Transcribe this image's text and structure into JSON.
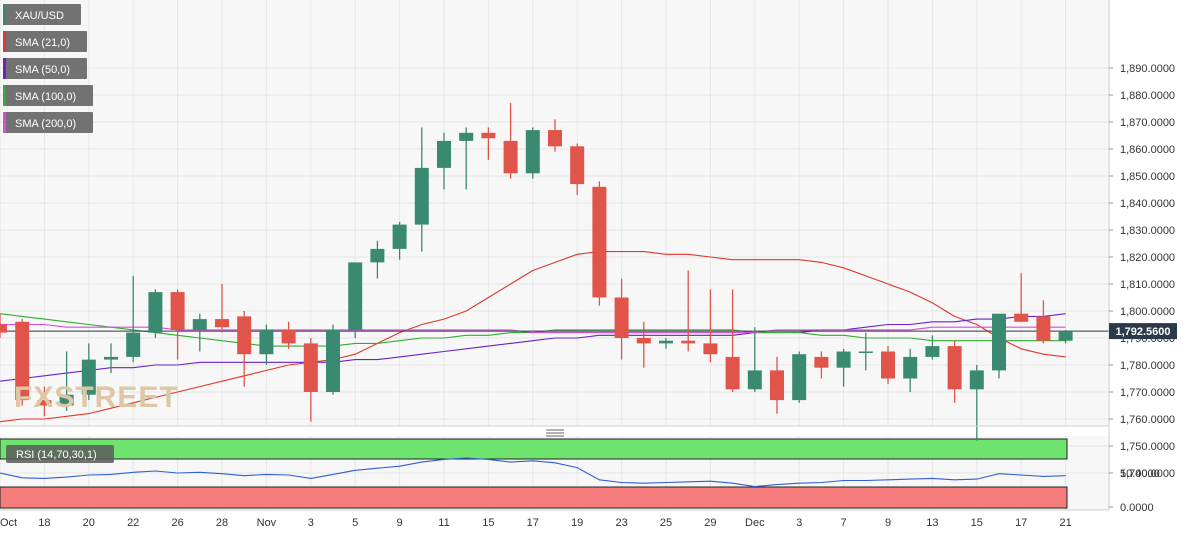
{
  "colors": {
    "background": "#f7f7f7",
    "grid": "#e6e6e6",
    "up": "#3a8a72",
    "down": "#e0544a",
    "sma21": "#e0362c",
    "sma50": "#6a22c8",
    "sma100": "#2fae2f",
    "sma200": "#d94bd9",
    "price_line": "#2b3a4a",
    "rsi_line": "#2f5fd6",
    "rsi_overbought": "#6ee36e",
    "rsi_oversold": "#f77c7c",
    "axis_text": "#333333"
  },
  "legend": [
    {
      "label": "XAU/USD",
      "color": "#3a8a72"
    },
    {
      "label": "SMA (21,0)",
      "color": "#e0362c"
    },
    {
      "label": "SMA (50,0)",
      "color": "#6a22c8"
    },
    {
      "label": "SMA (100,0)",
      "color": "#2fae2f"
    },
    {
      "label": "SMA (200,0)",
      "color": "#d94bd9"
    }
  ],
  "watermark": "FXSTREET",
  "last_price_label": "1,792.5600",
  "rsi_label": "RSI (14,70,30,1)",
  "chart_data": {
    "type": "candlestick",
    "symbol": "XAU/USD",
    "ylim": [
      1733,
      1893
    ],
    "y_ticks": [
      1740,
      1750,
      1760,
      1770,
      1780,
      1790,
      1800,
      1810,
      1820,
      1830,
      1840,
      1850,
      1860,
      1870,
      1880,
      1890
    ],
    "y_tick_labels": [
      "1,740.0000",
      "1,750.0000",
      "1,760.0000",
      "1,770.0000",
      "1,780.0000",
      "1,790.0000",
      "1,800.0000",
      "1,810.0000",
      "1,820.0000",
      "1,830.0000",
      "1,840.0000",
      "1,850.0000",
      "1,860.0000",
      "1,870.0000",
      "1,880.0000",
      "1,890.0000"
    ],
    "x_tick_labels": [
      "Oct",
      "18",
      "20",
      "22",
      "26",
      "28",
      "Nov",
      "3",
      "5",
      "9",
      "11",
      "15",
      "17",
      "19",
      "23",
      "25",
      "29",
      "Dec",
      "3",
      "7",
      "9",
      "13",
      "15",
      "17",
      "21"
    ],
    "x_tick_index": [
      0,
      2,
      4,
      6,
      8,
      10,
      12,
      14,
      16,
      18,
      20,
      22,
      24,
      26,
      28,
      30,
      32,
      34,
      36,
      38,
      40,
      42,
      44,
      46,
      48
    ],
    "last_price": 1792.56,
    "candles": [
      {
        "o": 1795,
        "h": 1799,
        "l": 1790,
        "c": 1792
      },
      {
        "o": 1796,
        "h": 1797,
        "l": 1765,
        "c": 1767
      },
      {
        "o": 1767,
        "h": 1772,
        "l": 1761,
        "c": 1765
      },
      {
        "o": 1765,
        "h": 1785,
        "l": 1763,
        "c": 1769
      },
      {
        "o": 1769,
        "h": 1788,
        "l": 1767,
        "c": 1782
      },
      {
        "o": 1782,
        "h": 1788,
        "l": 1777,
        "c": 1783
      },
      {
        "o": 1783,
        "h": 1813,
        "l": 1781,
        "c": 1792
      },
      {
        "o": 1792,
        "h": 1808,
        "l": 1790,
        "c": 1807
      },
      {
        "o": 1807,
        "h": 1808,
        "l": 1782,
        "c": 1793
      },
      {
        "o": 1793,
        "h": 1799,
        "l": 1785,
        "c": 1797
      },
      {
        "o": 1797,
        "h": 1810,
        "l": 1792,
        "c": 1794
      },
      {
        "o": 1798,
        "h": 1800,
        "l": 1772,
        "c": 1784
      },
      {
        "o": 1784,
        "h": 1795,
        "l": 1780,
        "c": 1793
      },
      {
        "o": 1793,
        "h": 1796,
        "l": 1786,
        "c": 1788
      },
      {
        "o": 1788,
        "h": 1790,
        "l": 1759,
        "c": 1770
      },
      {
        "o": 1770,
        "h": 1795,
        "l": 1769,
        "c": 1793
      },
      {
        "o": 1793,
        "h": 1818,
        "l": 1790,
        "c": 1818
      },
      {
        "o": 1818,
        "h": 1826,
        "l": 1812,
        "c": 1823
      },
      {
        "o": 1823,
        "h": 1833,
        "l": 1819,
        "c": 1832
      },
      {
        "o": 1832,
        "h": 1868,
        "l": 1822,
        "c": 1853
      },
      {
        "o": 1853,
        "h": 1866,
        "l": 1845,
        "c": 1863
      },
      {
        "o": 1863,
        "h": 1868,
        "l": 1845,
        "c": 1866
      },
      {
        "o": 1866,
        "h": 1868,
        "l": 1856,
        "c": 1864
      },
      {
        "o": 1863,
        "h": 1877,
        "l": 1849,
        "c": 1851
      },
      {
        "o": 1851,
        "h": 1868,
        "l": 1849,
        "c": 1867
      },
      {
        "o": 1867,
        "h": 1871,
        "l": 1859,
        "c": 1861
      },
      {
        "o": 1861,
        "h": 1862,
        "l": 1843,
        "c": 1847
      },
      {
        "o": 1846,
        "h": 1848,
        "l": 1802,
        "c": 1805
      },
      {
        "o": 1805,
        "h": 1812,
        "l": 1782,
        "c": 1790
      },
      {
        "o": 1790,
        "h": 1796,
        "l": 1779,
        "c": 1788
      },
      {
        "o": 1788,
        "h": 1790,
        "l": 1786,
        "c": 1789
      },
      {
        "o": 1789,
        "h": 1815,
        "l": 1785,
        "c": 1788
      },
      {
        "o": 1788,
        "h": 1808,
        "l": 1781,
        "c": 1784
      },
      {
        "o": 1783,
        "h": 1808,
        "l": 1770,
        "c": 1771
      },
      {
        "o": 1771,
        "h": 1794,
        "l": 1770,
        "c": 1778
      },
      {
        "o": 1778,
        "h": 1783,
        "l": 1762,
        "c": 1767
      },
      {
        "o": 1767,
        "h": 1785,
        "l": 1766,
        "c": 1784
      },
      {
        "o": 1783,
        "h": 1785,
        "l": 1775,
        "c": 1779
      },
      {
        "o": 1779,
        "h": 1786,
        "l": 1772,
        "c": 1785
      },
      {
        "o": 1785,
        "h": 1792,
        "l": 1778,
        "c": 1785
      },
      {
        "o": 1785,
        "h": 1787,
        "l": 1773,
        "c": 1775
      },
      {
        "o": 1775,
        "h": 1786,
        "l": 1770,
        "c": 1783
      },
      {
        "o": 1783,
        "h": 1791,
        "l": 1782,
        "c": 1787
      },
      {
        "o": 1787,
        "h": 1789,
        "l": 1766,
        "c": 1771
      },
      {
        "o": 1771,
        "h": 1780,
        "l": 1752,
        "c": 1778
      },
      {
        "o": 1778,
        "h": 1799,
        "l": 1775,
        "c": 1799
      },
      {
        "o": 1799,
        "h": 1814,
        "l": 1796,
        "c": 1796
      },
      {
        "o": 1798,
        "h": 1804,
        "l": 1788,
        "c": 1789
      },
      {
        "o": 1789,
        "h": 1793,
        "l": 1788,
        "c": 1792.56
      }
    ],
    "series": [
      {
        "name": "SMA (21,0)",
        "values": [
          1759,
          1760,
          1760,
          1761,
          1762,
          1764,
          1766,
          1768,
          1770,
          1772,
          1774,
          1776,
          1778,
          1780,
          1781,
          1782,
          1784,
          1788,
          1792,
          1795,
          1797,
          1800,
          1805,
          1810,
          1815,
          1818,
          1821,
          1822,
          1822,
          1822,
          1821,
          1821,
          1820,
          1819,
          1819,
          1819,
          1819,
          1818,
          1816,
          1813,
          1810,
          1807,
          1803,
          1798,
          1795,
          1790,
          1786,
          1784,
          1783
        ]
      },
      {
        "name": "SMA (50,0)",
        "values": [
          1774,
          1775,
          1776,
          1777,
          1778,
          1779,
          1779,
          1780,
          1780,
          1781,
          1781,
          1781,
          1781,
          1781,
          1781,
          1781,
          1782,
          1782,
          1783,
          1784,
          1785,
          1786,
          1787,
          1788,
          1789,
          1790,
          1790,
          1791,
          1791,
          1791,
          1791,
          1791,
          1791,
          1791,
          1792,
          1792,
          1792,
          1793,
          1793,
          1794,
          1795,
          1795,
          1796,
          1796,
          1797,
          1797,
          1798,
          1798,
          1799
        ]
      },
      {
        "name": "SMA (100,0)",
        "values": [
          1799,
          1798,
          1797,
          1796,
          1795,
          1794,
          1793,
          1792,
          1791,
          1790,
          1789,
          1788,
          1787,
          1787,
          1787,
          1787,
          1788,
          1788,
          1789,
          1790,
          1790,
          1791,
          1791,
          1792,
          1792,
          1793,
          1793,
          1793,
          1793,
          1793,
          1793,
          1793,
          1793,
          1793,
          1792,
          1792,
          1792,
          1791,
          1791,
          1790,
          1790,
          1790,
          1789,
          1789,
          1789,
          1789,
          1789,
          1789,
          1789
        ]
      },
      {
        "name": "SMA (200,0)",
        "values": [
          1795,
          1795,
          1795,
          1794,
          1794,
          1794,
          1794,
          1794,
          1793,
          1793,
          1793,
          1793,
          1793,
          1793,
          1793,
          1793,
          1793,
          1793,
          1793,
          1793,
          1793,
          1793,
          1793,
          1793,
          1792,
          1792,
          1792,
          1792,
          1792,
          1792,
          1792,
          1792,
          1792,
          1792,
          1792,
          1793,
          1793,
          1793,
          1793,
          1793,
          1793,
          1793,
          1794,
          1794,
          1794,
          1794,
          1794,
          1794,
          1794
        ]
      }
    ],
    "rsi": {
      "name": "RSI (14,70,30,1)",
      "ylim": [
        0,
        100
      ],
      "overbought": 70,
      "oversold": 30,
      "y_ticks": [
        0,
        50
      ],
      "y_tick_labels": [
        "0.0000",
        "50.0000"
      ],
      "values": [
        50,
        43,
        42,
        44,
        47,
        48,
        51,
        53,
        50,
        51,
        49,
        46,
        48,
        47,
        42,
        48,
        54,
        57,
        60,
        66,
        70,
        72,
        70,
        66,
        68,
        65,
        58,
        40,
        36,
        35,
        36,
        37,
        38,
        35,
        30,
        33,
        35,
        36,
        39,
        39,
        40,
        41,
        42,
        40,
        41,
        49,
        47,
        45,
        46
      ]
    }
  }
}
